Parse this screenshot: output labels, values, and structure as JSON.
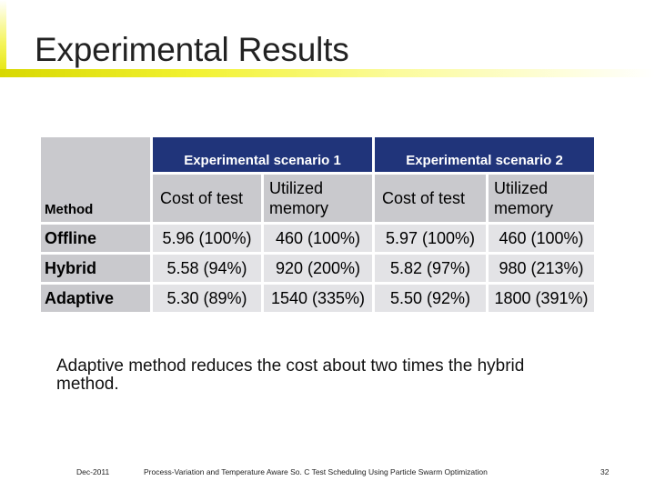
{
  "slide": {
    "title": "Experimental Results"
  },
  "table": {
    "group_headers": [
      "Experimental scenario 1",
      "Experimental scenario 2"
    ],
    "method_header": "Method",
    "sub_headers": {
      "cost": "Cost of test",
      "mem_line1": "Utilized",
      "mem_line2": "memory"
    },
    "rows": [
      {
        "method": "Offline",
        "s1_cost": "5.96 (100%)",
        "s1_mem": "460 (100%)",
        "s2_cost": "5.97 (100%)",
        "s2_mem": "460 (100%)"
      },
      {
        "method": "Hybrid",
        "s1_cost": "5.58 (94%)",
        "s1_mem": "920 (200%)",
        "s2_cost": "5.82 (97%)",
        "s2_mem": "980 (213%)"
      },
      {
        "method": "Adaptive",
        "s1_cost": "5.30 (89%)",
        "s1_mem": "1540 (335%)",
        "s2_cost": "5.50 (92%)",
        "s2_mem": "1800 (391%)"
      }
    ]
  },
  "bullet_text": "Adaptive method reduces the cost about two times the hybrid method.",
  "footer": {
    "date": "Dec-2011",
    "caption": "Process-Variation and Temperature Aware So. C Test Scheduling Using Particle Swarm Optimization",
    "page_number": "32"
  },
  "colors": {
    "header_bg": "#20347a",
    "label_bg": "#c9c9cd",
    "value_bg": "#e3e3e6",
    "accent": "#e6e610"
  }
}
